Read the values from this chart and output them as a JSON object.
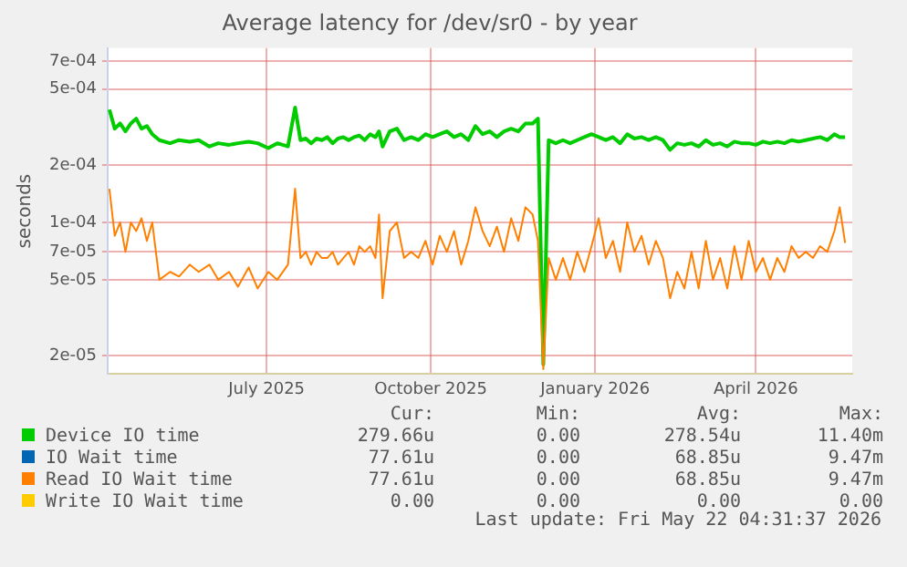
{
  "chart_data": {
    "type": "line",
    "title": "Average latency for /dev/sr0 - by year",
    "ylabel": "seconds",
    "log": "y",
    "grid": true,
    "legend": "bottom",
    "line_style": "solid",
    "marker": "none",
    "xlim": [
      "2025-04-03",
      "2026-05-25"
    ],
    "xticks": [
      {
        "value": "2025-07-01",
        "label": "July 2025"
      },
      {
        "value": "2025-10-01",
        "label": "October 2025"
      },
      {
        "value": "2026-01-01",
        "label": "January 2026"
      },
      {
        "value": "2026-04-01",
        "label": "April 2026"
      }
    ],
    "ylim": [
      1.6e-05,
      0.00082
    ],
    "yticks": [
      {
        "value": 2e-05,
        "label": "2e-05"
      },
      {
        "value": 5e-05,
        "label": "5e-05"
      },
      {
        "value": 7e-05,
        "label": "7e-05"
      },
      {
        "value": 0.0001,
        "label": "1e-04"
      },
      {
        "value": 0.0002,
        "label": "2e-04"
      },
      {
        "value": 0.0005,
        "label": "5e-04"
      },
      {
        "value": 0.0007,
        "label": "7e-04"
      }
    ],
    "x": [
      "2025-04-04",
      "2025-04-07",
      "2025-04-10",
      "2025-04-13",
      "2025-04-16",
      "2025-04-19",
      "2025-04-22",
      "2025-04-25",
      "2025-04-28",
      "2025-05-02",
      "2025-05-08",
      "2025-05-13",
      "2025-05-19",
      "2025-05-24",
      "2025-05-30",
      "2025-06-04",
      "2025-06-10",
      "2025-06-15",
      "2025-06-21",
      "2025-06-26",
      "2025-07-02",
      "2025-07-07",
      "2025-07-13",
      "2025-07-17",
      "2025-07-20",
      "2025-07-23",
      "2025-07-26",
      "2025-07-29",
      "2025-08-01",
      "2025-08-04",
      "2025-08-07",
      "2025-08-10",
      "2025-08-13",
      "2025-08-16",
      "2025-08-19",
      "2025-08-22",
      "2025-08-25",
      "2025-08-28",
      "2025-08-31",
      "2025-09-02",
      "2025-09-04",
      "2025-09-08",
      "2025-09-12",
      "2025-09-16",
      "2025-09-20",
      "2025-09-24",
      "2025-09-28",
      "2025-10-02",
      "2025-10-06",
      "2025-10-10",
      "2025-10-14",
      "2025-10-18",
      "2025-10-22",
      "2025-10-26",
      "2025-10-30",
      "2025-11-03",
      "2025-11-07",
      "2025-11-11",
      "2025-11-15",
      "2025-11-19",
      "2025-11-23",
      "2025-11-27",
      "2025-11-30",
      "2025-12-03",
      "2025-12-06",
      "2025-12-10",
      "2025-12-14",
      "2025-12-18",
      "2025-12-22",
      "2025-12-26",
      "2025-12-30",
      "2026-01-03",
      "2026-01-07",
      "2026-01-11",
      "2026-01-15",
      "2026-01-19",
      "2026-01-23",
      "2026-01-27",
      "2026-01-31",
      "2026-02-04",
      "2026-02-08",
      "2026-02-12",
      "2026-02-16",
      "2026-02-20",
      "2026-02-24",
      "2026-02-28",
      "2026-03-04",
      "2026-03-08",
      "2026-03-12",
      "2026-03-16",
      "2026-03-20",
      "2026-03-24",
      "2026-03-28",
      "2026-04-01",
      "2026-04-05",
      "2026-04-09",
      "2026-04-13",
      "2026-04-17",
      "2026-04-21",
      "2026-04-25",
      "2026-04-29",
      "2026-05-03",
      "2026-05-07",
      "2026-05-11",
      "2026-05-15",
      "2026-05-18",
      "2026-05-21"
    ],
    "series": [
      {
        "name": "Device IO time",
        "color": "#00cc00",
        "values": [
          0.00039,
          0.00031,
          0.00033,
          0.0003,
          0.00033,
          0.00035,
          0.00031,
          0.00032,
          0.00029,
          0.00027,
          0.00026,
          0.00027,
          0.000265,
          0.00027,
          0.00025,
          0.00026,
          0.000255,
          0.00026,
          0.000265,
          0.00026,
          0.000245,
          0.00026,
          0.00025,
          0.0004,
          0.00027,
          0.000275,
          0.00026,
          0.000275,
          0.00027,
          0.00028,
          0.00026,
          0.000275,
          0.00028,
          0.00027,
          0.00028,
          0.000285,
          0.00027,
          0.00029,
          0.00028,
          0.0003,
          0.00025,
          0.0003,
          0.00031,
          0.00027,
          0.00028,
          0.00027,
          0.00029,
          0.00028,
          0.00029,
          0.0003,
          0.00028,
          0.00029,
          0.00027,
          0.00032,
          0.00029,
          0.0003,
          0.00028,
          0.0003,
          0.00031,
          0.0003,
          0.00033,
          0.00033,
          0.00035,
          1.8e-05,
          0.00027,
          0.00026,
          0.00027,
          0.00026,
          0.00027,
          0.00028,
          0.00029,
          0.00028,
          0.00027,
          0.00028,
          0.00026,
          0.00029,
          0.000275,
          0.00028,
          0.00027,
          0.00028,
          0.00027,
          0.00024,
          0.00026,
          0.000255,
          0.00026,
          0.00025,
          0.00027,
          0.000255,
          0.00026,
          0.00025,
          0.000265,
          0.00026,
          0.00026,
          0.000255,
          0.000265,
          0.00026,
          0.000265,
          0.00026,
          0.00027,
          0.000265,
          0.00027,
          0.000275,
          0.00028,
          0.00027,
          0.00029,
          0.00028,
          0.00028
        ]
      },
      {
        "name": "IO Wait time",
        "color": "#0066b3",
        "values": [
          null,
          null,
          null,
          null,
          null,
          null,
          null,
          null,
          null,
          null,
          null,
          null,
          null,
          null,
          null,
          null,
          null,
          null,
          null,
          null,
          null,
          null,
          null,
          null,
          null,
          null,
          null,
          null,
          null,
          null,
          null,
          null,
          null,
          null,
          null,
          null,
          null,
          null,
          null,
          null,
          null,
          null,
          null,
          null,
          null,
          null,
          null,
          null,
          null,
          null,
          null,
          null,
          null,
          null,
          null,
          null,
          null,
          null,
          null,
          null,
          null,
          null,
          null,
          null,
          null,
          null,
          null,
          null,
          null,
          null,
          null,
          null,
          null,
          null,
          null,
          null,
          null,
          null,
          null,
          null,
          null,
          null,
          null,
          null,
          null,
          null,
          null,
          null,
          null,
          null,
          null,
          null,
          null,
          null,
          null,
          null,
          null,
          null,
          null,
          null,
          null,
          null,
          null,
          null,
          null,
          null,
          null
        ]
      },
      {
        "name": "Read IO Wait time",
        "color": "#ff8000",
        "values": [
          0.00015,
          8.5e-05,
          0.0001,
          7e-05,
          0.0001,
          9e-05,
          0.000105,
          8e-05,
          0.0001,
          5e-05,
          5.5e-05,
          5.2e-05,
          6e-05,
          5.5e-05,
          6e-05,
          5e-05,
          5.5e-05,
          4.6e-05,
          5.8e-05,
          4.5e-05,
          5.5e-05,
          5e-05,
          6e-05,
          0.00015,
          6.5e-05,
          7e-05,
          6e-05,
          7e-05,
          6.5e-05,
          6.5e-05,
          7e-05,
          6e-05,
          6.5e-05,
          7e-05,
          6e-05,
          7.5e-05,
          7e-05,
          7.5e-05,
          6.5e-05,
          0.00011,
          4e-05,
          9e-05,
          0.0001,
          6.5e-05,
          7e-05,
          6.5e-05,
          8e-05,
          6e-05,
          8.5e-05,
          7e-05,
          9e-05,
          6e-05,
          8e-05,
          0.00012,
          9e-05,
          7.5e-05,
          9.5e-05,
          7e-05,
          0.000105,
          8e-05,
          0.00012,
          0.00011,
          8e-05,
          1.7e-05,
          6.5e-05,
          5e-05,
          6.5e-05,
          5e-05,
          7e-05,
          5.5e-05,
          7.5e-05,
          0.000105,
          6.5e-05,
          8e-05,
          5.5e-05,
          0.0001,
          7e-05,
          8.5e-05,
          6e-05,
          8e-05,
          6.5e-05,
          4e-05,
          5.5e-05,
          4.5e-05,
          7e-05,
          4.5e-05,
          8e-05,
          5e-05,
          6.5e-05,
          4.5e-05,
          7.5e-05,
          5e-05,
          8e-05,
          5.5e-05,
          6.5e-05,
          5e-05,
          6.5e-05,
          5.5e-05,
          7.5e-05,
          6.5e-05,
          7e-05,
          6.5e-05,
          7.5e-05,
          7e-05,
          9e-05,
          0.00012,
          7.8e-05
        ]
      },
      {
        "name": "Write IO Wait time",
        "color": "#ffcc00",
        "values": [
          null,
          null,
          null,
          null,
          null,
          null,
          null,
          null,
          null,
          null,
          null,
          null,
          null,
          null,
          null,
          null,
          null,
          null,
          null,
          null,
          null,
          null,
          null,
          null,
          null,
          null,
          null,
          null,
          null,
          null,
          null,
          null,
          null,
          null,
          null,
          null,
          null,
          null,
          null,
          null,
          null,
          null,
          null,
          null,
          null,
          null,
          null,
          null,
          null,
          null,
          null,
          null,
          null,
          null,
          null,
          null,
          null,
          null,
          null,
          null,
          null,
          null,
          null,
          null,
          null,
          null,
          null,
          null,
          null,
          null,
          null,
          null,
          null,
          null,
          null,
          null,
          null,
          null,
          null,
          null,
          null,
          null,
          null,
          null,
          null,
          null,
          null,
          null,
          null,
          null,
          null,
          null,
          null,
          null,
          null,
          null,
          null,
          null,
          null,
          null,
          null,
          null,
          null,
          null,
          null,
          null,
          null
        ]
      }
    ],
    "annotations": [
      "Cur:",
      "Min:",
      "Avg:",
      "Max:",
      "279.66u",
      "0.00",
      "278.54u",
      "11.40m",
      "77.61u",
      "0.00",
      "68.85u",
      "9.47m",
      "77.61u",
      "0.00",
      "68.85u",
      "9.47m",
      "0.00",
      "0.00",
      "0.00",
      "0.00",
      "Last update: Fri May 22 04:31:37 2026"
    ]
  }
}
